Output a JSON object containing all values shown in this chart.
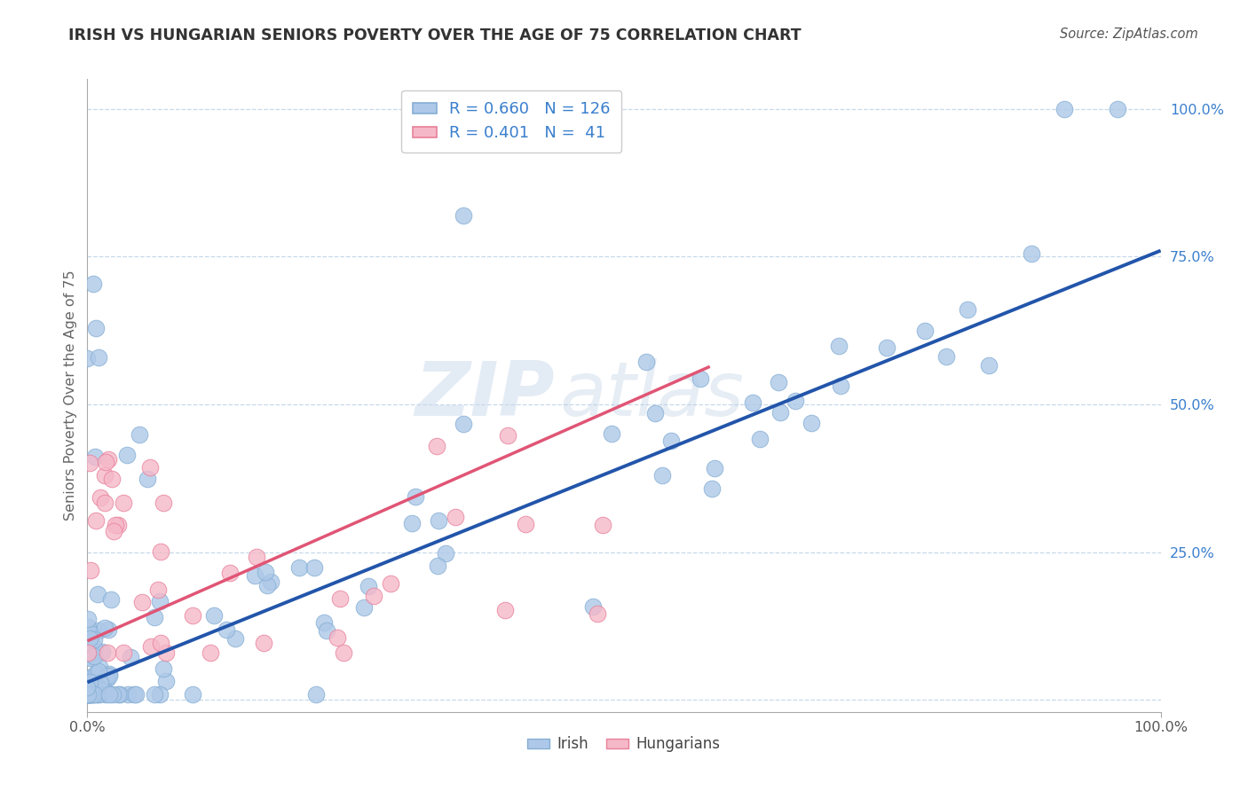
{
  "title": "IRISH VS HUNGARIAN SENIORS POVERTY OVER THE AGE OF 75 CORRELATION CHART",
  "source": "Source: ZipAtlas.com",
  "ylabel": "Seniors Poverty Over the Age of 75",
  "watermark_zip": "ZIP",
  "watermark_atlas": "atlas",
  "irish_R": 0.66,
  "irish_N": 126,
  "hungarian_R": 0.401,
  "hungarian_N": 41,
  "irish_color": "#adc8e8",
  "irish_edge_color": "#85aed4",
  "hungarian_color": "#f5b8c8",
  "hungarian_edge_color": "#e8809a",
  "irish_line_color": "#2255aa",
  "hungarian_line_color": "#e05575",
  "legend_R_color": "#3a7fcd",
  "title_color": "#333333",
  "background_color": "#ffffff",
  "grid_color": "#c0d4e8",
  "ytick_color": "#3a7fcd",
  "xtick_color": "#555555",
  "ylabel_color": "#666666",
  "source_color": "#555555"
}
